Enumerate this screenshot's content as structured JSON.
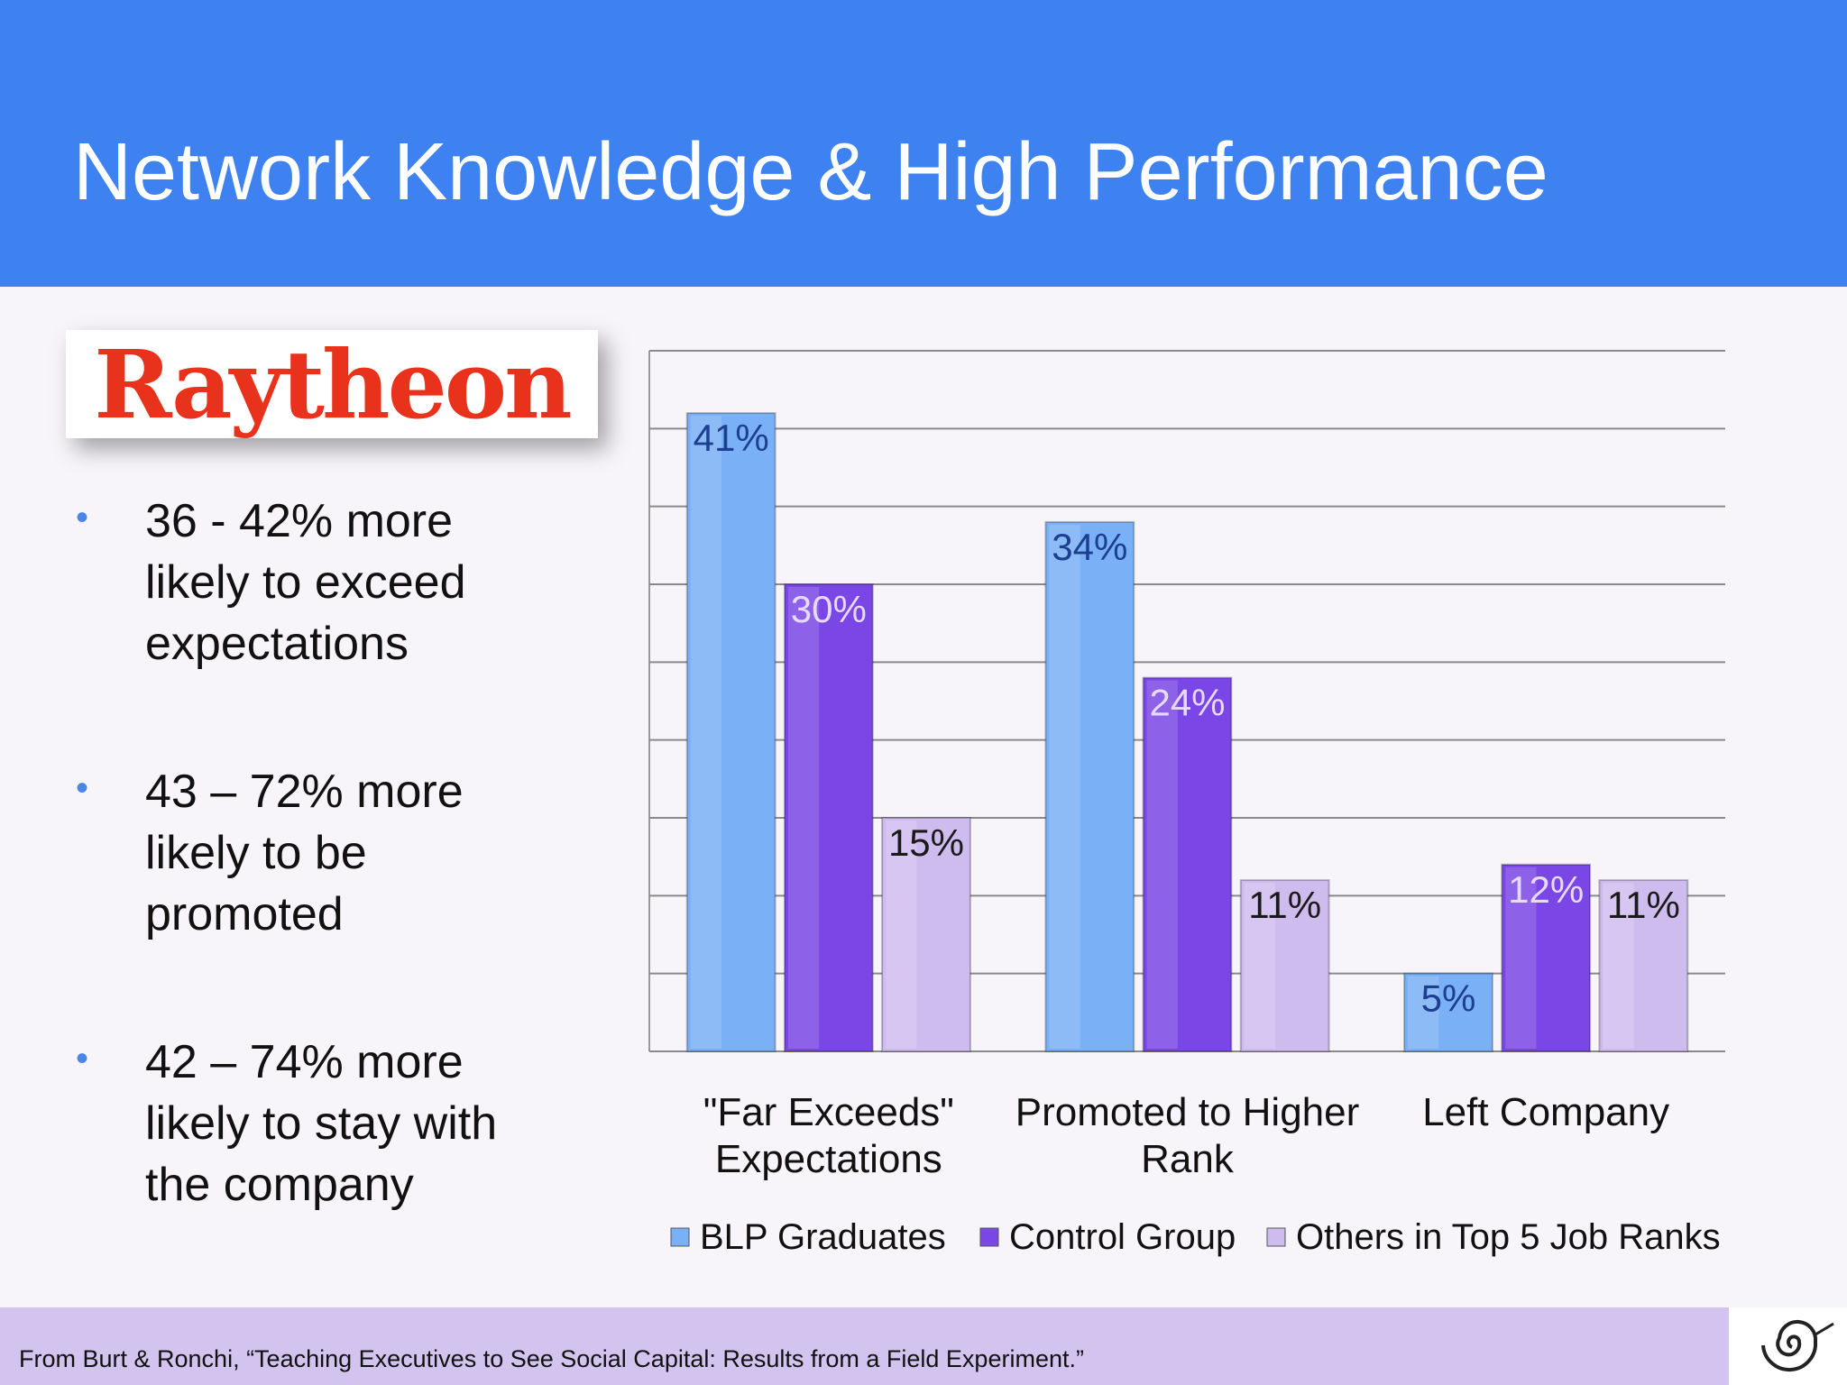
{
  "title": "Network Knowledge & High Performance",
  "logo": "Raytheon",
  "bullets": [
    "36 - 42% more likely to exceed expectations",
    "43 – 72% more likely to be promoted",
    "42 – 74% more likely to stay with the company"
  ],
  "footnote": "From Burt & Ronchi, “Teaching Executives to See Social Capital: Results from a Field Experiment.”",
  "chart_data": {
    "type": "bar",
    "categories": [
      "\"Far Exceeds\" Expectations",
      "Promoted to Higher Rank",
      "Left Company"
    ],
    "series": [
      {
        "name": "BLP Graduates",
        "color": "#7ab0f5",
        "values": [
          41,
          34,
          5
        ],
        "value_labels": [
          "41%",
          "34%",
          "5%"
        ]
      },
      {
        "name": "Control Group",
        "color": "#7b46e6",
        "values": [
          30,
          24,
          12
        ],
        "value_labels": [
          "30%",
          "24%",
          "12%"
        ]
      },
      {
        "name": "Others in Top 5 Job Ranks",
        "color": "#cfbcef",
        "values": [
          15,
          11,
          11
        ],
        "value_labels": [
          "15%",
          "11%",
          "11%"
        ]
      }
    ],
    "ylim": [
      0,
      45
    ],
    "yticks": [
      0,
      5,
      10,
      15,
      20,
      25,
      30,
      35,
      40,
      45
    ],
    "grid": true,
    "legend": "bottom"
  }
}
